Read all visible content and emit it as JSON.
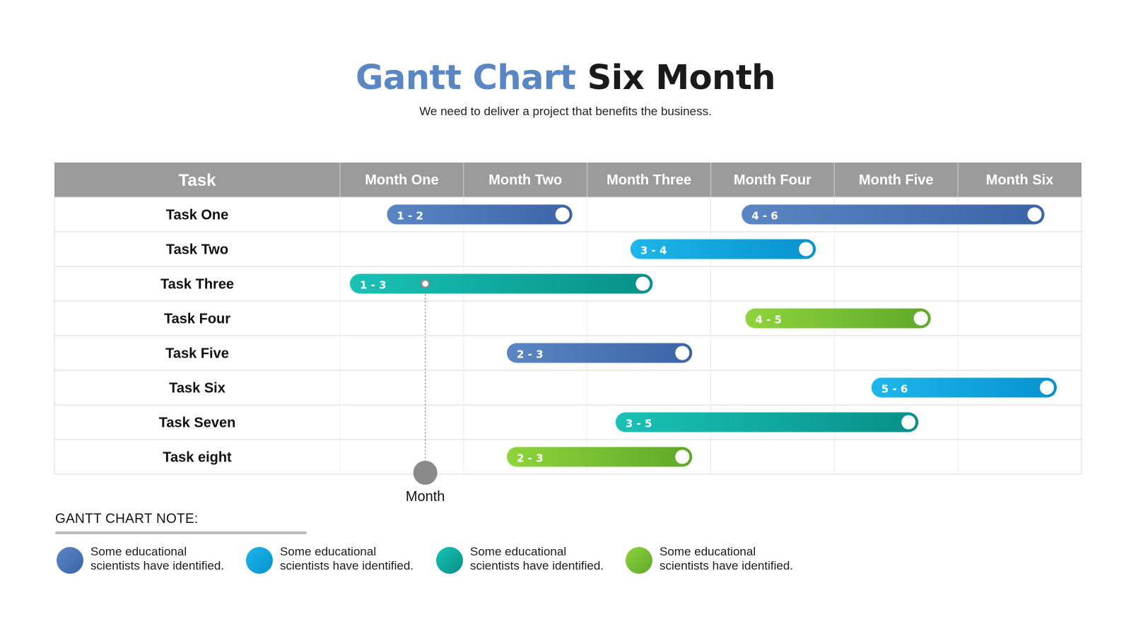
{
  "title": {
    "accent": "Gantt Chart",
    "rest": "Six Month"
  },
  "subtitle": "We need to deliver a project that benefits the business.",
  "chart_data": {
    "type": "gantt",
    "task_header": "Task",
    "columns": [
      "Month One",
      "Month Two",
      "Month Three",
      "Month Four",
      "Month Five",
      "Month Six"
    ],
    "tasks": [
      {
        "name": "Task One",
        "bars": [
          {
            "label": "1 - 2",
            "start": 1.38,
            "end": 2.88,
            "color": "blue"
          },
          {
            "label": "4 - 6",
            "start": 4.25,
            "end": 6.7,
            "color": "blue"
          }
        ]
      },
      {
        "name": "Task Two",
        "bars": [
          {
            "label": "3 - 4",
            "start": 3.35,
            "end": 4.85,
            "color": "cyan"
          }
        ]
      },
      {
        "name": "Task Three",
        "bars": [
          {
            "label": "1 - 3",
            "start": 1.08,
            "end": 3.53,
            "color": "teal"
          }
        ]
      },
      {
        "name": "Task Four",
        "bars": [
          {
            "label": "4 - 5",
            "start": 4.28,
            "end": 5.78,
            "color": "green"
          }
        ]
      },
      {
        "name": "Task Five",
        "bars": [
          {
            "label": "2 - 3",
            "start": 2.35,
            "end": 3.85,
            "color": "blue"
          }
        ]
      },
      {
        "name": "Task Six",
        "bars": [
          {
            "label": "5 - 6",
            "start": 5.3,
            "end": 6.8,
            "color": "cyan"
          }
        ]
      },
      {
        "name": "Task Seven",
        "bars": [
          {
            "label": "3 - 5",
            "start": 3.23,
            "end": 5.68,
            "color": "teal"
          }
        ]
      },
      {
        "name": "Task eight",
        "bars": [
          {
            "label": "2 - 3",
            "start": 2.35,
            "end": 3.85,
            "color": "green"
          }
        ]
      }
    ],
    "marker": {
      "label": "Month",
      "value": 1.69
    }
  },
  "palette": {
    "blue": [
      "#5b86c4",
      "#3a64a6"
    ],
    "cyan": [
      "#1cb6ea",
      "#0792cf"
    ],
    "teal": [
      "#19c2b5",
      "#079088"
    ],
    "green": [
      "#8ed43c",
      "#5fa82a"
    ],
    "header": "#9b9b9b",
    "grid": "#d9d9d9",
    "marker": "#8a8a8a"
  },
  "note": {
    "title": "GANTT CHART  NOTE:",
    "items": [
      {
        "line1": "Some educational",
        "line2": "scientists have identified.",
        "color": "blue"
      },
      {
        "line1": "Some educational",
        "line2": "scientists have identified.",
        "color": "cyan"
      },
      {
        "line1": "Some educational",
        "line2": "scientists have identified.",
        "color": "teal"
      },
      {
        "line1": "Some educational",
        "line2": "scientists have identified.",
        "color": "green"
      }
    ]
  }
}
